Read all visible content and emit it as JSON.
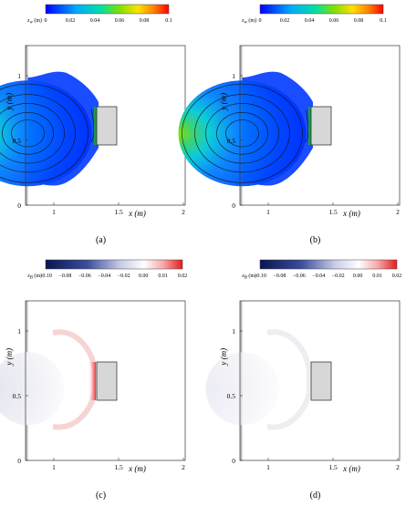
{
  "panels": [
    {
      "caption": "(a)",
      "colorbar": {
        "label": "z_w (m)",
        "label_main": "z",
        "label_sub": "w",
        "label_unit": " (m)",
        "ticks": [
          "0",
          "0.02",
          "0.04",
          "0.06",
          "0.08",
          "0.1"
        ],
        "colormap": "jet"
      },
      "xlabel": "x (m)",
      "ylabel": "y (m)",
      "xticks": [
        "1",
        "1.5",
        "2"
      ],
      "yticks": [
        "0",
        "0.5",
        "1"
      ]
    },
    {
      "caption": "(b)",
      "colorbar": {
        "label": "z_w (m)",
        "label_main": "z",
        "label_sub": "w",
        "label_unit": " (m)",
        "ticks": [
          "0",
          "0.02",
          "0.04",
          "0.06",
          "0.08",
          "0.1"
        ],
        "colormap": "jet"
      },
      "xlabel": "x (m)",
      "ylabel": "y (m)",
      "xticks": [
        "1",
        "1.5",
        "2"
      ],
      "yticks": [
        "0",
        "0.5",
        "1"
      ]
    },
    {
      "caption": "(c)",
      "colorbar": {
        "label": "z_B (m)",
        "label_main": "z",
        "label_sub": "B",
        "label_unit": " (m)",
        "ticks": [
          "−0.10",
          "−0.08",
          "−0.06",
          "−0.04",
          "−0.02",
          "0.00",
          "0.01",
          "0.02"
        ],
        "colormap": "blue-white-red"
      },
      "xlabel": "x (m)",
      "ylabel": "y (m)",
      "xticks": [
        "1",
        "1.5",
        "2"
      ],
      "yticks": [
        "0",
        "0.5",
        "1"
      ]
    },
    {
      "caption": "(d)",
      "colorbar": {
        "label": "z_B (m)",
        "label_main": "z",
        "label_sub": "B",
        "label_unit": " (m)",
        "ticks": [
          "−0.10",
          "−0.08",
          "−0.06",
          "−0.04",
          "−0.02",
          "0.00",
          "0.01",
          "0.02"
        ],
        "colormap": "blue-white-red"
      },
      "xlabel": "x (m)",
      "ylabel": "y (m)",
      "xticks": [
        "1",
        "1.5",
        "2"
      ],
      "yticks": [
        "0",
        "0.5",
        "1"
      ]
    }
  ]
}
